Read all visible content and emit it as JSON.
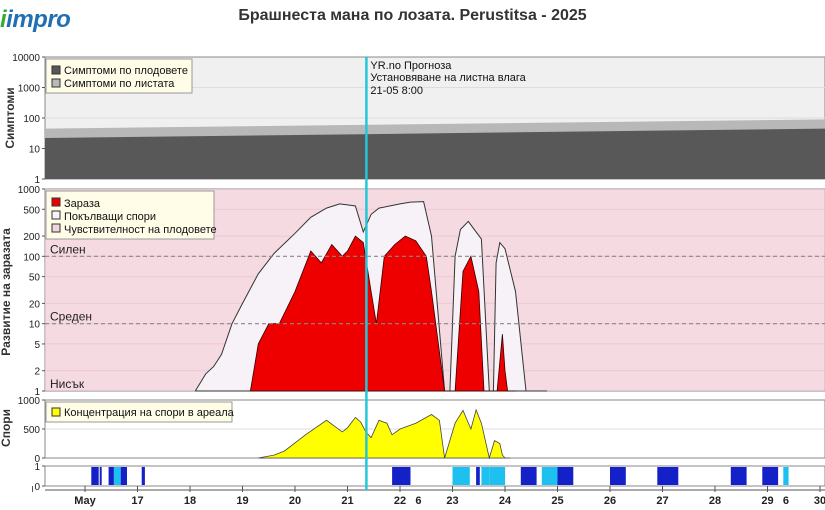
{
  "header": {
    "logo_text": "impro",
    "title": "Брашнеста мана по лозата.  Perustitsa - 2025"
  },
  "colors": {
    "fruit_symptoms": "#585858",
    "leaf_symptoms": "#b8b8b8",
    "infection": "#ee0000",
    "spores_cover": "#f7f2f8",
    "fruit_susceptibility": "#f2d4dc",
    "panel2_bg": "#fbe3ea",
    "spores_conc": "#ffff00",
    "forecast_line": "#22c8d8",
    "wetness_dark": "#1420c8",
    "wetness_light": "#1ec0f0"
  },
  "forecast": {
    "lines": [
      "YR.no Прогноза",
      "Установяване на листна влага",
      "21-05 8:00"
    ]
  },
  "chart_data": [
    {
      "type": "area",
      "ylabel": "Симптоми",
      "yscale": "log",
      "ylim": [
        1,
        10000
      ],
      "yticks": [
        "1",
        "10",
        "100",
        "1000",
        "10000"
      ],
      "legend": [
        "Симптоми по плодовете",
        "Симптоми по листата"
      ],
      "legend_position": "top-left",
      "series": [
        {
          "name": "Симптоми по плодовете",
          "x": [
            0,
            14
          ],
          "values": [
            22,
            45
          ]
        },
        {
          "name": "Симптоми по листата",
          "x": [
            0,
            14
          ],
          "values": [
            45,
            90
          ]
        }
      ]
    },
    {
      "type": "area",
      "ylabel": "Развитие на заразата",
      "yscale": "log",
      "ylim": [
        1,
        1000
      ],
      "yticks": [
        "1",
        "2",
        "5",
        "10",
        "20",
        "50",
        "100",
        "200",
        "500",
        "1000"
      ],
      "thresholds": [
        {
          "label": "Силен",
          "value": 100
        },
        {
          "label": "Среден",
          "value": 10
        },
        {
          "label": "Нисък",
          "value": 1
        }
      ],
      "legend": [
        "Зараза",
        "Покълващи спори",
        "Чувствителност на плодовете"
      ],
      "legend_position": "top-left",
      "series": [
        {
          "name": "Покълващи спори",
          "x": [
            2.1,
            2.3,
            2.45,
            2.6,
            2.8,
            3.0,
            3.3,
            3.6,
            4.0,
            4.3,
            4.6,
            4.85,
            5.0,
            5.15,
            5.3,
            5.45,
            5.6,
            5.8,
            6.0,
            6.2,
            6.45,
            6.6,
            6.85,
            6.95,
            7.05,
            7.15,
            7.3,
            7.55,
            7.7,
            7.78,
            7.83,
            7.9,
            8.0,
            8.2,
            8.4,
            8.55,
            8.7,
            8.8
          ],
          "values": [
            1,
            1.8,
            2.3,
            3.5,
            10,
            20,
            55,
            110,
            220,
            380,
            520,
            600,
            580,
            560,
            230,
            420,
            520,
            560,
            600,
            640,
            650,
            200,
            1,
            1,
            100,
            250,
            330,
            180,
            1,
            1,
            80,
            160,
            130,
            30,
            1,
            1,
            1,
            1
          ]
        },
        {
          "name": "Зараза",
          "x": [
            3.15,
            3.3,
            3.5,
            3.7,
            4.0,
            4.3,
            4.5,
            4.7,
            4.9,
            5.0,
            5.15,
            5.3,
            5.45,
            5.55,
            5.7,
            5.9,
            6.1,
            6.3,
            6.5,
            6.6,
            6.85,
            7.05,
            7.2,
            7.35,
            7.5,
            7.6,
            7.75,
            7.85,
            7.95,
            8.0,
            8.05,
            8.1,
            8.2
          ],
          "values": [
            1,
            5,
            10,
            10,
            30,
            120,
            80,
            150,
            100,
            120,
            200,
            160,
            30,
            10,
            100,
            150,
            200,
            170,
            100,
            30,
            1,
            1,
            60,
            100,
            30,
            1,
            1,
            1,
            7,
            2,
            1,
            1,
            1
          ]
        }
      ]
    },
    {
      "type": "area",
      "ylabel": "Спори",
      "ylim": [
        0,
        1000
      ],
      "yticks": [
        "0",
        "500",
        "1000"
      ],
      "legend": [
        "Концентрация на спори в ареала"
      ],
      "legend_position": "top-left",
      "series": [
        {
          "name": "Концентрация на спори в ареала",
          "x": [
            3.3,
            3.6,
            3.8,
            4.2,
            4.6,
            4.9,
            5.0,
            5.15,
            5.25,
            5.35,
            5.45,
            5.6,
            5.75,
            5.85,
            6.0,
            6.3,
            6.6,
            6.75,
            6.85,
            7.05,
            7.2,
            7.35,
            7.45,
            7.55,
            7.7,
            7.8,
            7.9,
            7.95,
            8.0,
            8.1
          ],
          "values": [
            0,
            50,
            120,
            400,
            650,
            450,
            520,
            700,
            620,
            450,
            350,
            650,
            600,
            400,
            500,
            600,
            750,
            650,
            0,
            600,
            820,
            500,
            830,
            600,
            0,
            300,
            250,
            50,
            0,
            0
          ]
        }
      ]
    },
    {
      "type": "bar",
      "ylabel": "",
      "ylim": [
        0,
        1
      ],
      "yticks": [
        "0",
        "1"
      ],
      "x_axis_labels": [
        "May",
        "17",
        "18",
        "19",
        "20",
        "21",
        "22",
        "6",
        "23",
        "24",
        "25",
        "26",
        "27",
        "28",
        "29",
        "6",
        "30"
      ],
      "segments": [
        {
          "x": [
            0.12,
            0.26
          ],
          "tone": "dark"
        },
        {
          "x": [
            0.28,
            0.3
          ],
          "tone": "dark"
        },
        {
          "x": [
            0.45,
            0.55
          ],
          "tone": "dark"
        },
        {
          "x": [
            0.55,
            0.68
          ],
          "tone": "light"
        },
        {
          "x": [
            0.68,
            0.8
          ],
          "tone": "dark"
        },
        {
          "x": [
            1.08,
            1.14
          ],
          "tone": "dark"
        },
        {
          "x": [
            5.85,
            6.2
          ],
          "tone": "dark"
        },
        {
          "x": [
            7.0,
            7.33
          ],
          "tone": "light"
        },
        {
          "x": [
            7.45,
            7.52
          ],
          "tone": "dark"
        },
        {
          "x": [
            7.55,
            7.7
          ],
          "tone": "light"
        },
        {
          "x": [
            7.7,
            8.0
          ],
          "tone": "light"
        },
        {
          "x": [
            8.3,
            8.6
          ],
          "tone": "dark"
        },
        {
          "x": [
            8.7,
            9.0
          ],
          "tone": "light"
        },
        {
          "x": [
            9.0,
            9.3
          ],
          "tone": "dark"
        },
        {
          "x": [
            10.0,
            10.3
          ],
          "tone": "dark"
        },
        {
          "x": [
            10.9,
            11.3
          ],
          "tone": "dark"
        },
        {
          "x": [
            12.3,
            12.6
          ],
          "tone": "dark"
        },
        {
          "x": [
            12.9,
            13.2
          ],
          "tone": "dark"
        },
        {
          "x": [
            13.3,
            13.4
          ],
          "tone": "light"
        }
      ]
    }
  ]
}
